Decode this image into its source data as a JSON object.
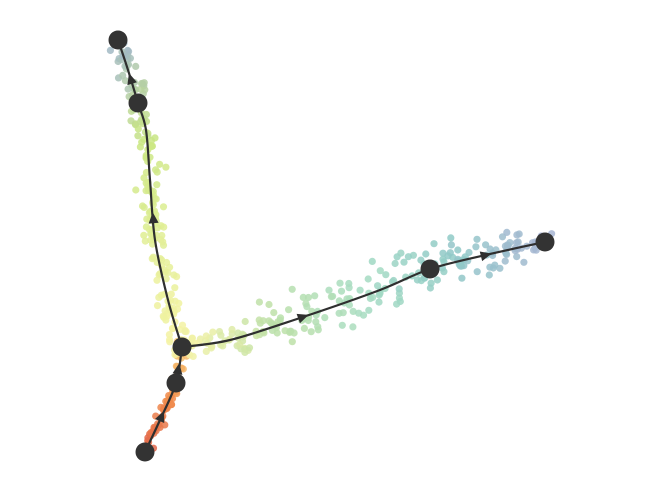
{
  "colors": {
    "background": "#ffffff",
    "trajectory_line": "#2f2f2f",
    "milestone_fill": "#333333",
    "arrowhead_fill": "#2f2f2f",
    "cell_palette": [
      "#e0634a",
      "#f08a4b",
      "#f8c873",
      "#f7f3a6",
      "#e2ef96",
      "#c9e682",
      "#bde0a8",
      "#a6dcc2",
      "#8fcac7",
      "#9fb6c9",
      "#a9b3d3"
    ]
  },
  "icons": {
    "milestone": "filled-circle",
    "direction_marker": "triangle-arrowhead"
  }
}
